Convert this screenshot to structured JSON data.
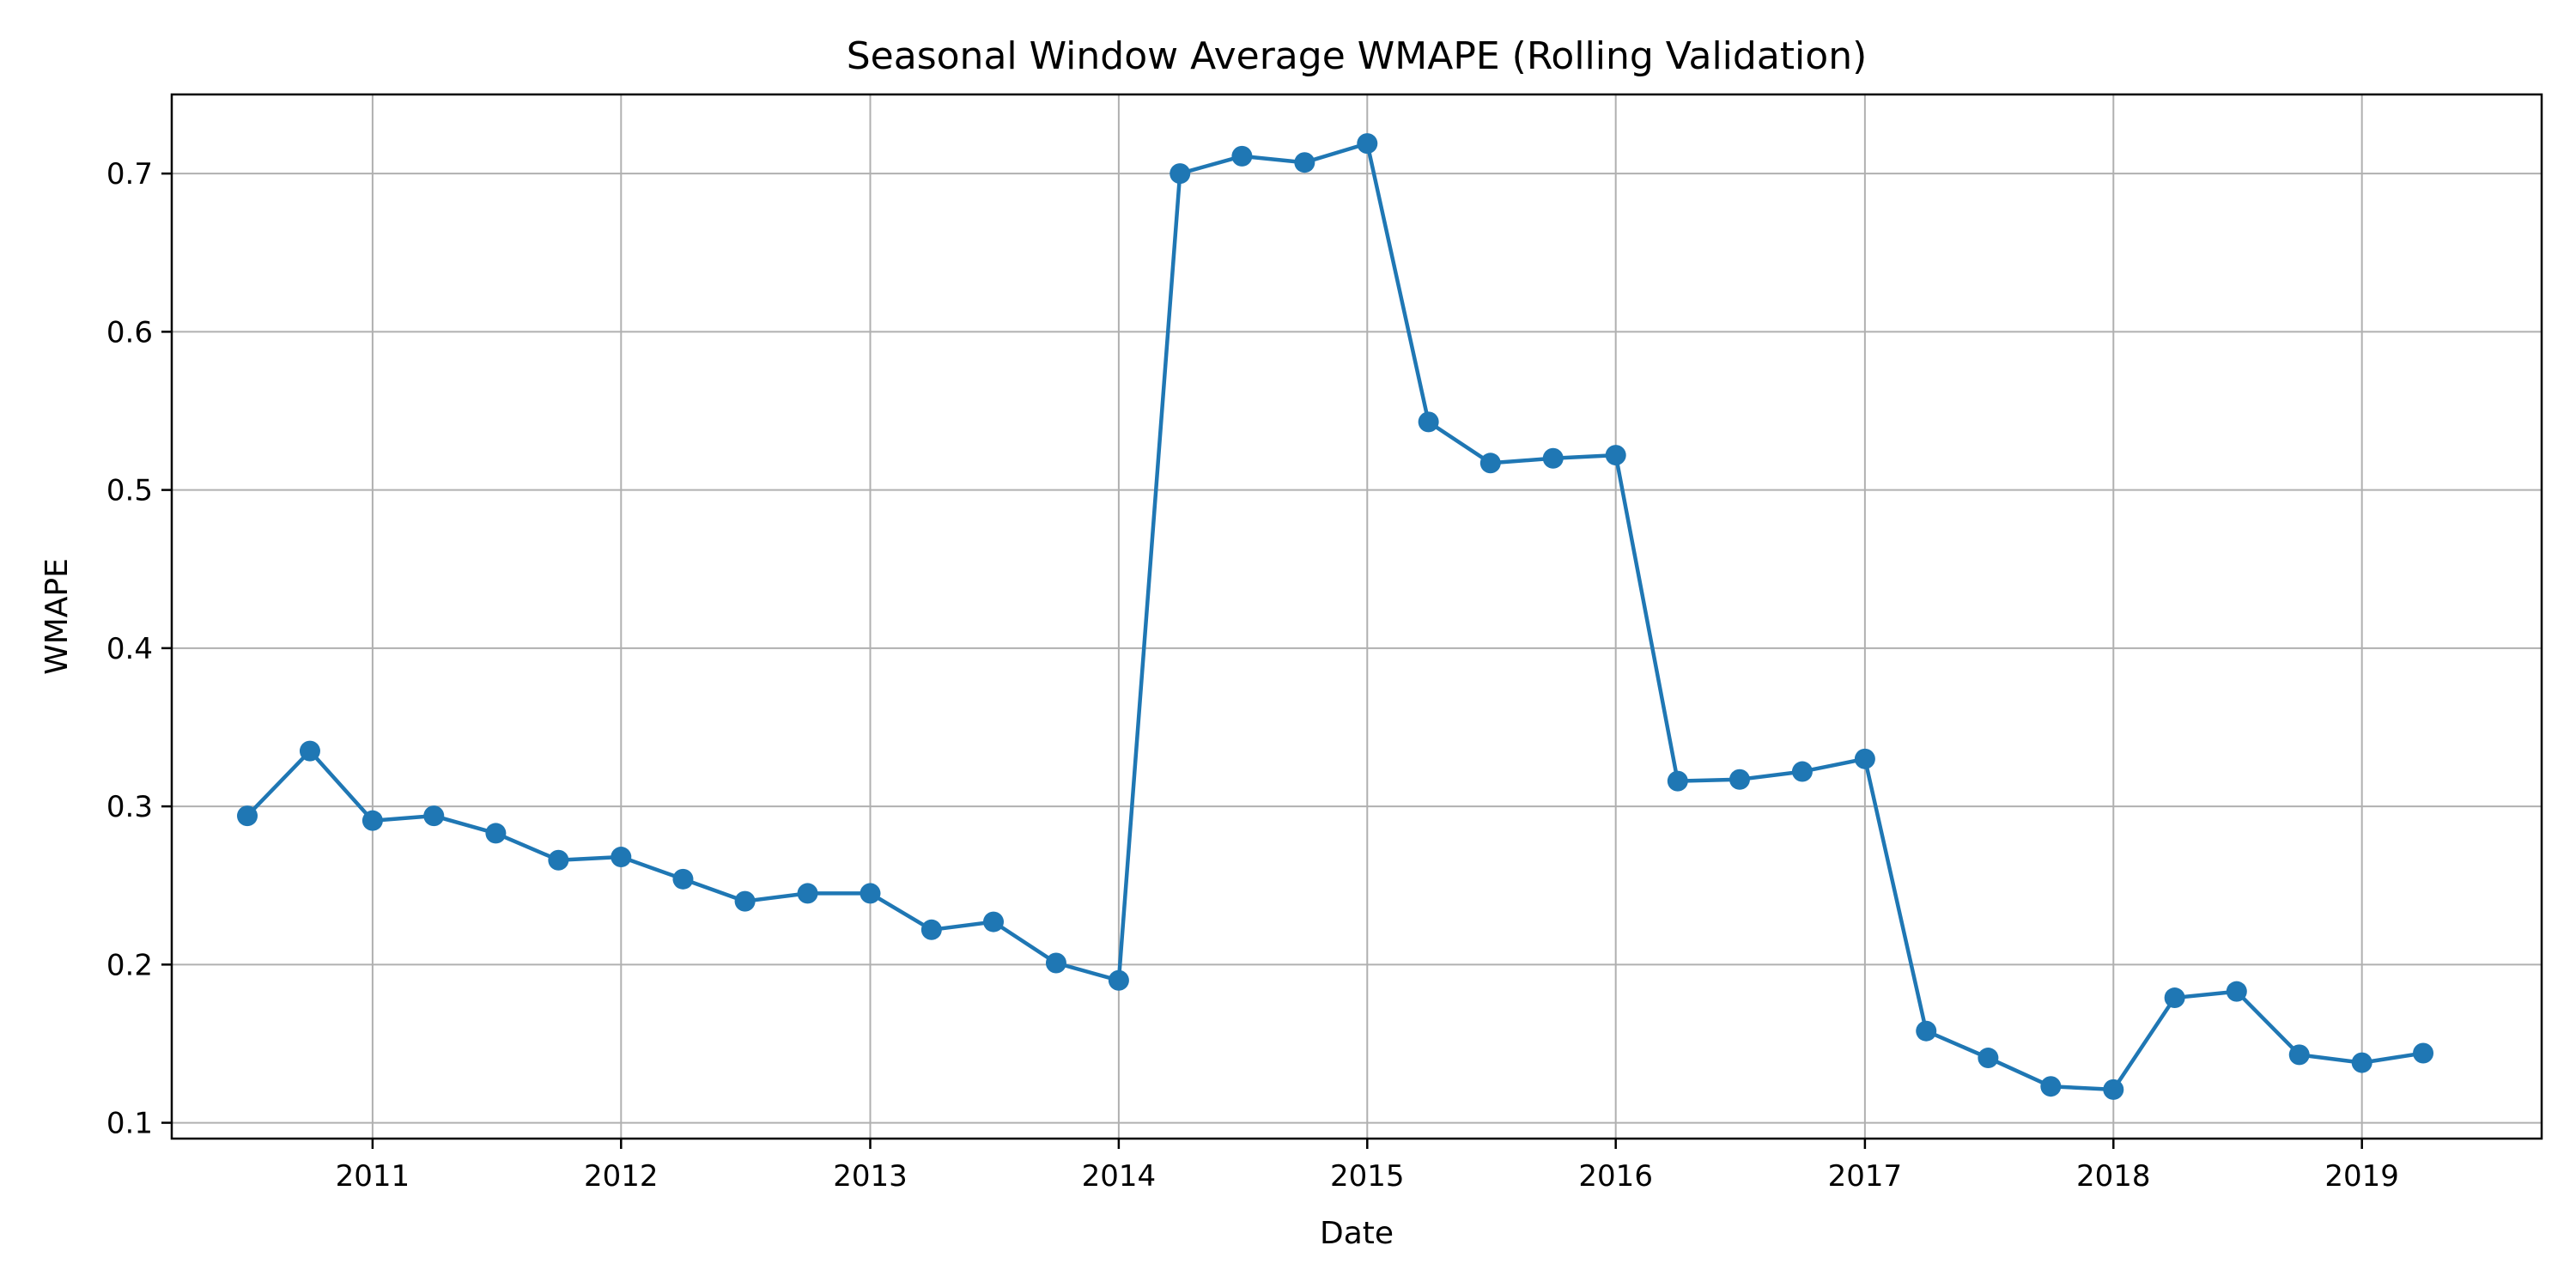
{
  "chart_data": {
    "type": "line",
    "title": "Seasonal Window Average WMAPE (Rolling Validation)",
    "xlabel": "Date",
    "ylabel": "WMAPE",
    "grid": true,
    "legend": "none",
    "color": "#1f77b4",
    "marker": "circle",
    "xlim": [
      "2010-03-12",
      "2019-09-22"
    ],
    "ylim": [
      0.09,
      0.75
    ],
    "x_ticks": [
      "2011",
      "2012",
      "2013",
      "2014",
      "2015",
      "2016",
      "2017",
      "2018",
      "2019"
    ],
    "y_ticks": [
      "0.1",
      "0.2",
      "0.3",
      "0.4",
      "0.5",
      "0.6",
      "0.7"
    ],
    "series": [
      {
        "x": [
          "2010-07-01",
          "2010-10-01",
          "2011-01-01",
          "2011-04-01",
          "2011-07-01",
          "2011-10-01",
          "2012-01-01",
          "2012-04-01",
          "2012-07-01",
          "2012-10-01",
          "2013-01-01",
          "2013-04-01",
          "2013-07-01",
          "2013-10-01",
          "2014-01-01",
          "2014-04-01",
          "2014-07-01",
          "2014-10-01",
          "2015-01-01",
          "2015-04-01",
          "2015-07-01",
          "2015-10-01",
          "2016-01-01",
          "2016-04-01",
          "2016-07-01",
          "2016-10-01",
          "2017-01-01",
          "2017-04-01",
          "2017-07-01",
          "2017-10-01",
          "2018-01-01",
          "2018-04-01",
          "2018-07-01",
          "2018-10-01",
          "2019-01-01",
          "2019-04-01"
        ],
        "values": [
          0.294,
          0.335,
          0.291,
          0.294,
          0.283,
          0.266,
          0.268,
          0.254,
          0.24,
          0.245,
          0.245,
          0.222,
          0.227,
          0.201,
          0.19,
          0.7,
          0.711,
          0.707,
          0.719,
          0.543,
          0.517,
          0.52,
          0.522,
          0.316,
          0.317,
          0.322,
          0.33,
          0.158,
          0.141,
          0.123,
          0.121,
          0.179,
          0.183,
          0.143,
          0.138,
          0.144
        ]
      }
    ]
  }
}
